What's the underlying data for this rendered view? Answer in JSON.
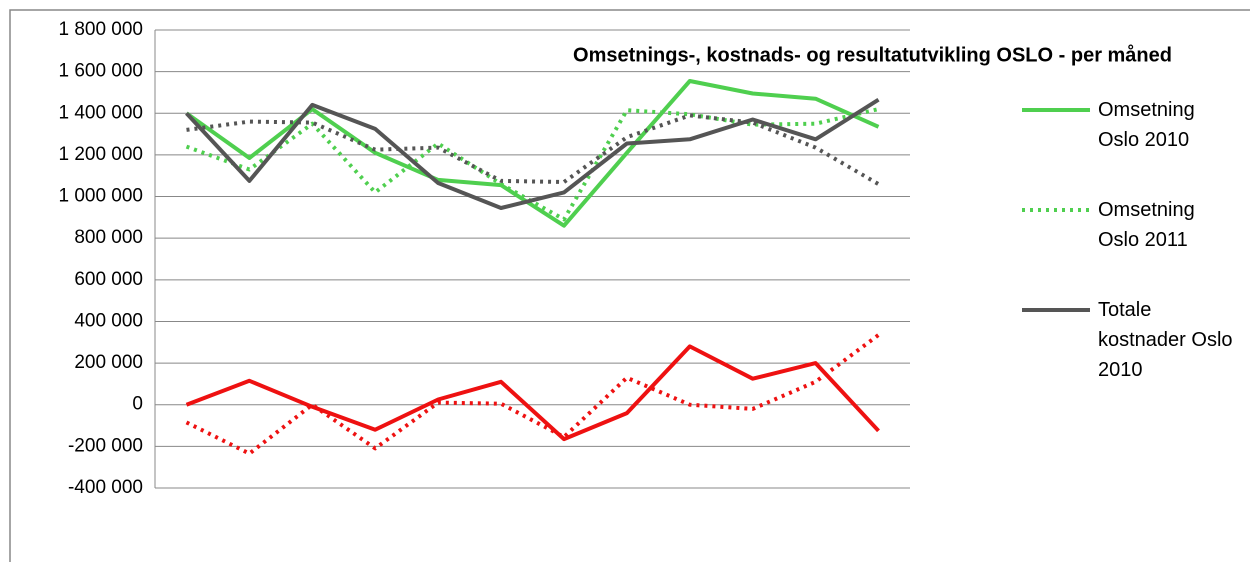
{
  "chart_data": {
    "type": "line",
    "title": "Omsetnings-, kostnads- og resultatutvikling OSLO - per måned",
    "categories": [
      null,
      null,
      null,
      null,
      null,
      null,
      null,
      null,
      null,
      null,
      null,
      null
    ],
    "ylim": [
      -400000,
      1800000
    ],
    "yticks": [
      {
        "value": -400000,
        "label": "-400 000"
      },
      {
        "value": -200000,
        "label": "-200 000"
      },
      0,
      {
        "value": 200000,
        "label": "200 000"
      },
      {
        "value": 400000,
        "label": "400 000"
      },
      {
        "value": 600000,
        "label": "600 000"
      },
      {
        "value": 800000,
        "label": "800 000"
      },
      {
        "value": 1000000,
        "label": "1 000 000"
      },
      {
        "value": 1200000,
        "label": "1 200 000"
      },
      {
        "value": 1400000,
        "label": "1 400 000"
      },
      {
        "value": 1600000,
        "label": "1 600 000"
      },
      {
        "value": 1800000,
        "label": "1 800 000"
      }
    ],
    "grid": true,
    "legend": "right",
    "series": [
      {
        "name": "Omsetning Oslo 2010",
        "color": "#4fcf4f",
        "linestyle": "solid",
        "values": [
          1400000,
          1185000,
          1420000,
          1210000,
          1080000,
          1055000,
          860000,
          1210000,
          1555000,
          1495000,
          1470000,
          1335000
        ]
      },
      {
        "name": "Omsetning Oslo 2011",
        "color": "#4fcf4f",
        "linestyle": "dotted",
        "values": [
          1240000,
          1130000,
          1350000,
          1020000,
          1255000,
          1060000,
          890000,
          1415000,
          1395000,
          1345000,
          1350000,
          1420000
        ]
      },
      {
        "name": "Totale kostnader Oslo 2010",
        "color": "#555555",
        "linestyle": "solid",
        "values": [
          1400000,
          1075000,
          1440000,
          1325000,
          1065000,
          945000,
          1020000,
          1255000,
          1275000,
          1370000,
          1275000,
          1465000
        ]
      },
      {
        "color": "#555555",
        "linestyle": "dotted",
        "values": [
          1320000,
          1360000,
          1355000,
          1225000,
          1235000,
          1075000,
          1070000,
          1285000,
          1390000,
          1355000,
          1235000,
          1060000
        ]
      },
      {
        "color": "#ee1111",
        "linestyle": "solid",
        "values": [
          0,
          115000,
          -10000,
          -120000,
          25000,
          110000,
          -165000,
          -40000,
          280000,
          125000,
          200000,
          -125000
        ]
      },
      {
        "color": "#ee1111",
        "linestyle": "dotted",
        "values": [
          -85000,
          -235000,
          0,
          -210000,
          10000,
          5000,
          -155000,
          130000,
          0,
          -20000,
          110000,
          335000
        ]
      }
    ]
  }
}
